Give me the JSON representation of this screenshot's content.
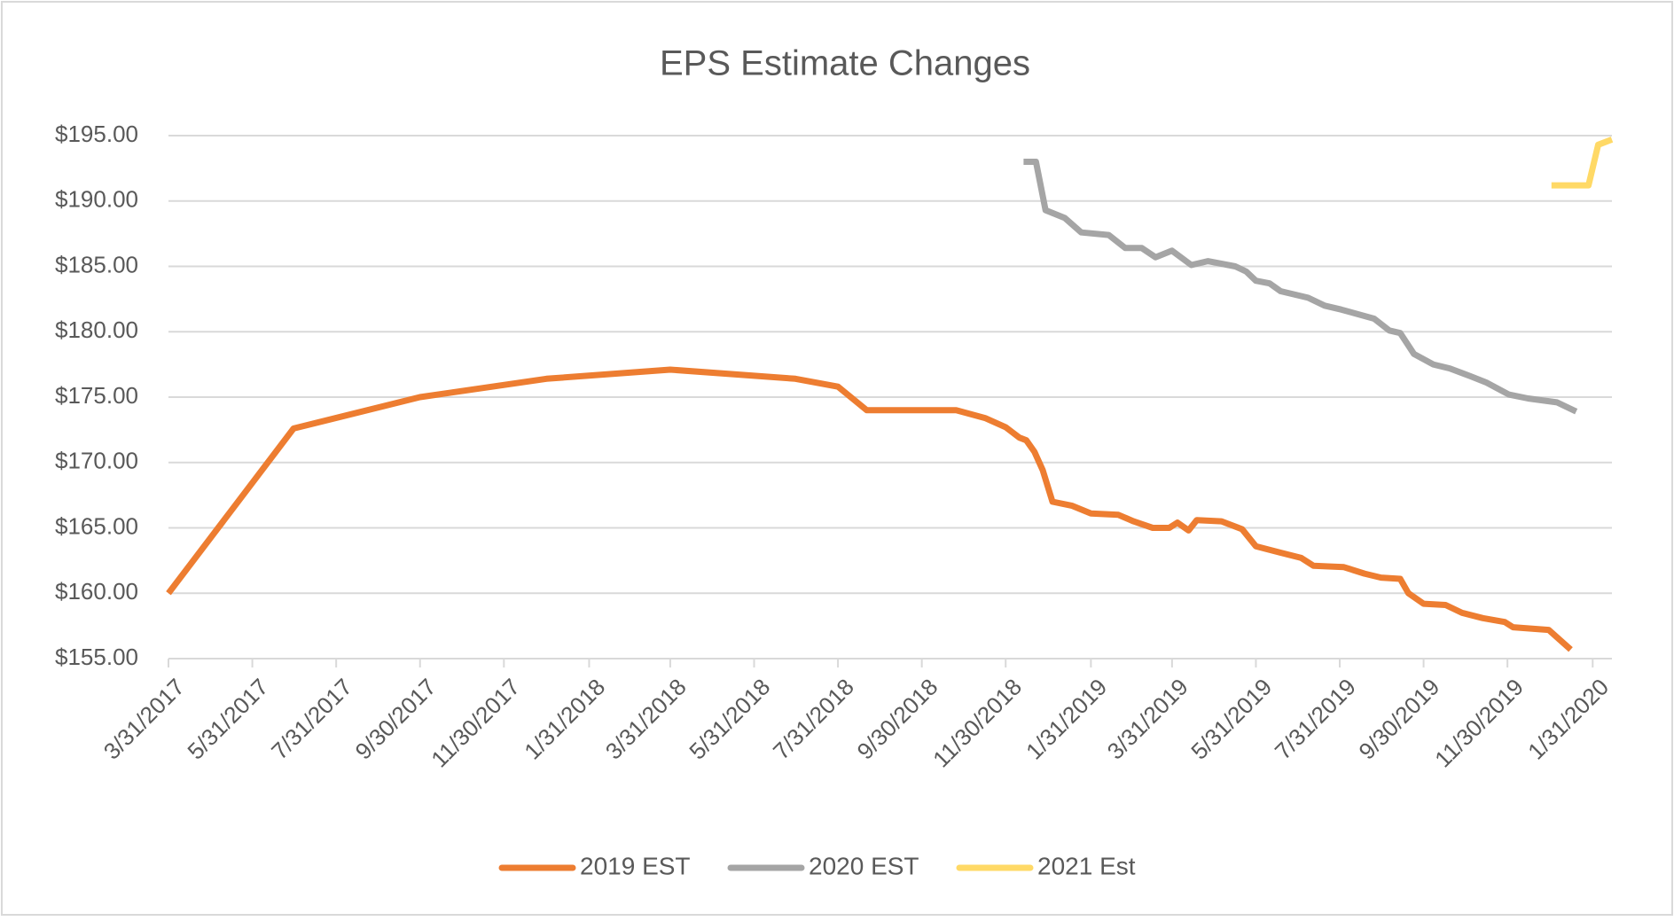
{
  "chart_data": {
    "type": "line",
    "title": "EPS Estimate Changes",
    "xlim": [
      "3/31/2017",
      "2/14/2020"
    ],
    "xticks": [
      "3/31/2017",
      "5/31/2017",
      "7/31/2017",
      "9/30/2017",
      "11/30/2017",
      "1/31/2018",
      "3/31/2018",
      "5/31/2018",
      "7/31/2018",
      "9/30/2018",
      "11/30/2018",
      "1/31/2019",
      "3/31/2019",
      "5/31/2019",
      "7/31/2019",
      "9/30/2019",
      "11/30/2019",
      "1/31/2020"
    ],
    "ylim": [
      155,
      195
    ],
    "yticks": [
      {
        "value": 155,
        "label": "$155.00"
      },
      {
        "value": 160,
        "label": "$160.00"
      },
      {
        "value": 165,
        "label": "$165.00"
      },
      {
        "value": 170,
        "label": "$170.00"
      },
      {
        "value": 175,
        "label": "$175.00"
      },
      {
        "value": 180,
        "label": "$180.00"
      },
      {
        "value": 185,
        "label": "$185.00"
      },
      {
        "value": 190,
        "label": "$190.00"
      },
      {
        "value": 195,
        "label": "$195.00"
      }
    ],
    "grid": true,
    "legend": "bottom",
    "series": [
      {
        "name": "2019 EST",
        "color": "#ED7D31",
        "x": [
          "3/31/2017",
          "6/30/2017",
          "9/30/2017",
          "12/31/2017",
          "3/31/2018",
          "6/30/2018",
          "7/31/2018",
          "8/21/2018",
          "10/25/2018",
          "11/15/2018",
          "11/30/2018",
          "12/10/2018",
          "12/15/2018",
          "12/21/2018",
          "12/27/2018",
          "1/3/2019",
          "1/17/2019",
          "1/31/2019",
          "2/20/2019",
          "3/3/2019",
          "3/17/2019",
          "3/29/2019",
          "4/4/2019",
          "4/12/2019",
          "4/18/2019",
          "5/6/2019",
          "5/21/2019",
          "5/31/2019",
          "6/18/2019",
          "7/3/2019",
          "7/12/2019",
          "8/3/2019",
          "8/18/2019",
          "8/30/2019",
          "9/13/2019",
          "9/19/2019",
          "9/30/2019",
          "10/16/2019",
          "10/28/2019",
          "11/12/2019",
          "11/28/2019",
          "12/4/2019",
          "12/30/2019",
          "1/15/2020"
        ],
        "values": [
          160.0,
          172.6,
          175.0,
          176.4,
          177.1,
          176.4,
          175.8,
          174.0,
          174.0,
          173.4,
          172.7,
          171.9,
          171.7,
          170.8,
          169.4,
          167.0,
          166.7,
          166.1,
          166.0,
          165.5,
          165.0,
          165.0,
          165.4,
          164.8,
          165.6,
          165.5,
          164.9,
          163.6,
          163.1,
          162.7,
          162.1,
          162.0,
          161.5,
          161.2,
          161.1,
          160.0,
          159.2,
          159.1,
          158.5,
          158.1,
          157.8,
          157.4,
          157.2,
          155.7
        ]
      },
      {
        "name": "2020 EST",
        "color": "#A5A5A5",
        "x": [
          "12/13/2018",
          "12/22/2018",
          "12/29/2018",
          "1/12/2019",
          "1/24/2019",
          "2/13/2019",
          "2/25/2019",
          "3/9/2019",
          "3/19/2019",
          "3/31/2019",
          "4/14/2019",
          "4/26/2019",
          "5/16/2019",
          "5/24/2019",
          "5/31/2019",
          "6/10/2019",
          "6/18/2019",
          "7/8/2019",
          "7/20/2019",
          "8/1/2019",
          "8/25/2019",
          "9/5/2019",
          "9/13/2019",
          "9/23/2019",
          "10/7/2019",
          "10/19/2019",
          "11/3/2019",
          "11/15/2019",
          "12/1/2019",
          "12/15/2019",
          "1/5/2020",
          "1/19/2020"
        ],
        "values": [
          193.0,
          193.0,
          189.3,
          188.7,
          187.6,
          187.4,
          186.4,
          186.4,
          185.7,
          186.2,
          185.1,
          185.4,
          185.0,
          184.6,
          183.9,
          183.7,
          183.1,
          182.6,
          182.0,
          181.7,
          181.0,
          180.1,
          179.9,
          178.3,
          177.5,
          177.2,
          176.6,
          176.1,
          175.2,
          174.9,
          174.6,
          173.9
        ]
      },
      {
        "name": "2021 Est",
        "color": "#FFD966",
        "x": [
          "1/1/2020",
          "1/28/2020",
          "2/4/2020",
          "2/14/2020"
        ],
        "values": [
          191.2,
          191.2,
          194.3,
          194.7
        ]
      }
    ]
  }
}
